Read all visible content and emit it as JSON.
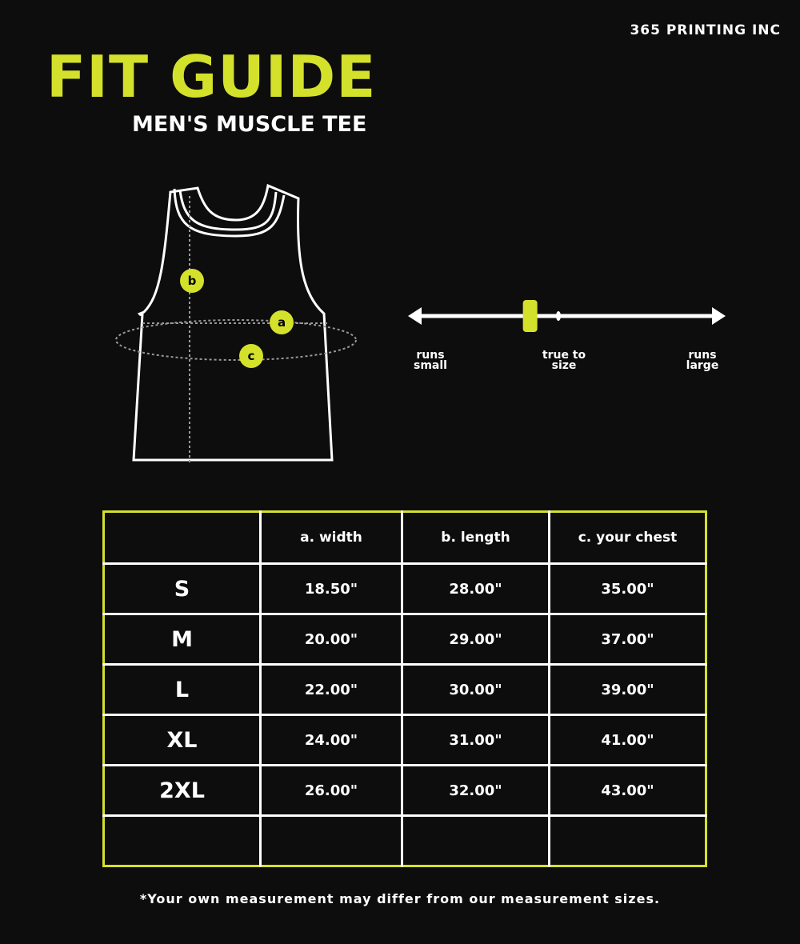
{
  "company": "365 PRINTING INC",
  "title": "FIT GUIDE",
  "subtitle": "MEN'S MUSCLE TEE",
  "accent_color": "#d4e12b",
  "diagram": {
    "labels": {
      "a": "a",
      "b": "b",
      "c": "c"
    }
  },
  "fit_scale": {
    "left_label": "runs small",
    "center_label": "true to size",
    "right_label": "runs large",
    "marker_position": 0.38
  },
  "table": {
    "headers": [
      "",
      "a. width",
      "b. length",
      "c. your chest"
    ],
    "rows": [
      [
        "S",
        "18.50\"",
        "28.00\"",
        "35.00\""
      ],
      [
        "M",
        "20.00\"",
        "29.00\"",
        "37.00\""
      ],
      [
        "L",
        "22.00\"",
        "30.00\"",
        "39.00\""
      ],
      [
        "XL",
        "24.00\"",
        "31.00\"",
        "41.00\""
      ],
      [
        "2XL",
        "26.00\"",
        "32.00\"",
        "43.00\""
      ],
      [
        "",
        "",
        "",
        ""
      ]
    ]
  },
  "note": "*Your own measurement may differ from our measurement sizes."
}
